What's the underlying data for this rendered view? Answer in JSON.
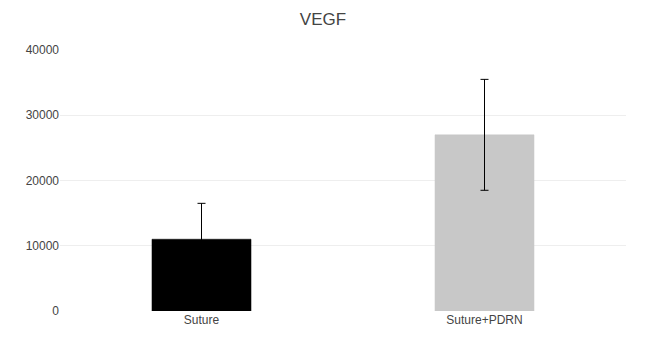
{
  "chart_data": {
    "type": "bar",
    "title": "VEGF",
    "categories": [
      "Suture",
      "Suture+PDRN"
    ],
    "values": [
      11000,
      27000
    ],
    "errors_upper": [
      5500,
      8500
    ],
    "errors_lower": [
      4000,
      8500
    ],
    "colors": [
      "#000000",
      "#c8c8c8"
    ],
    "ylim": [
      0,
      40000
    ],
    "yticks": [
      0,
      10000,
      20000,
      30000,
      40000
    ],
    "grid": true
  }
}
